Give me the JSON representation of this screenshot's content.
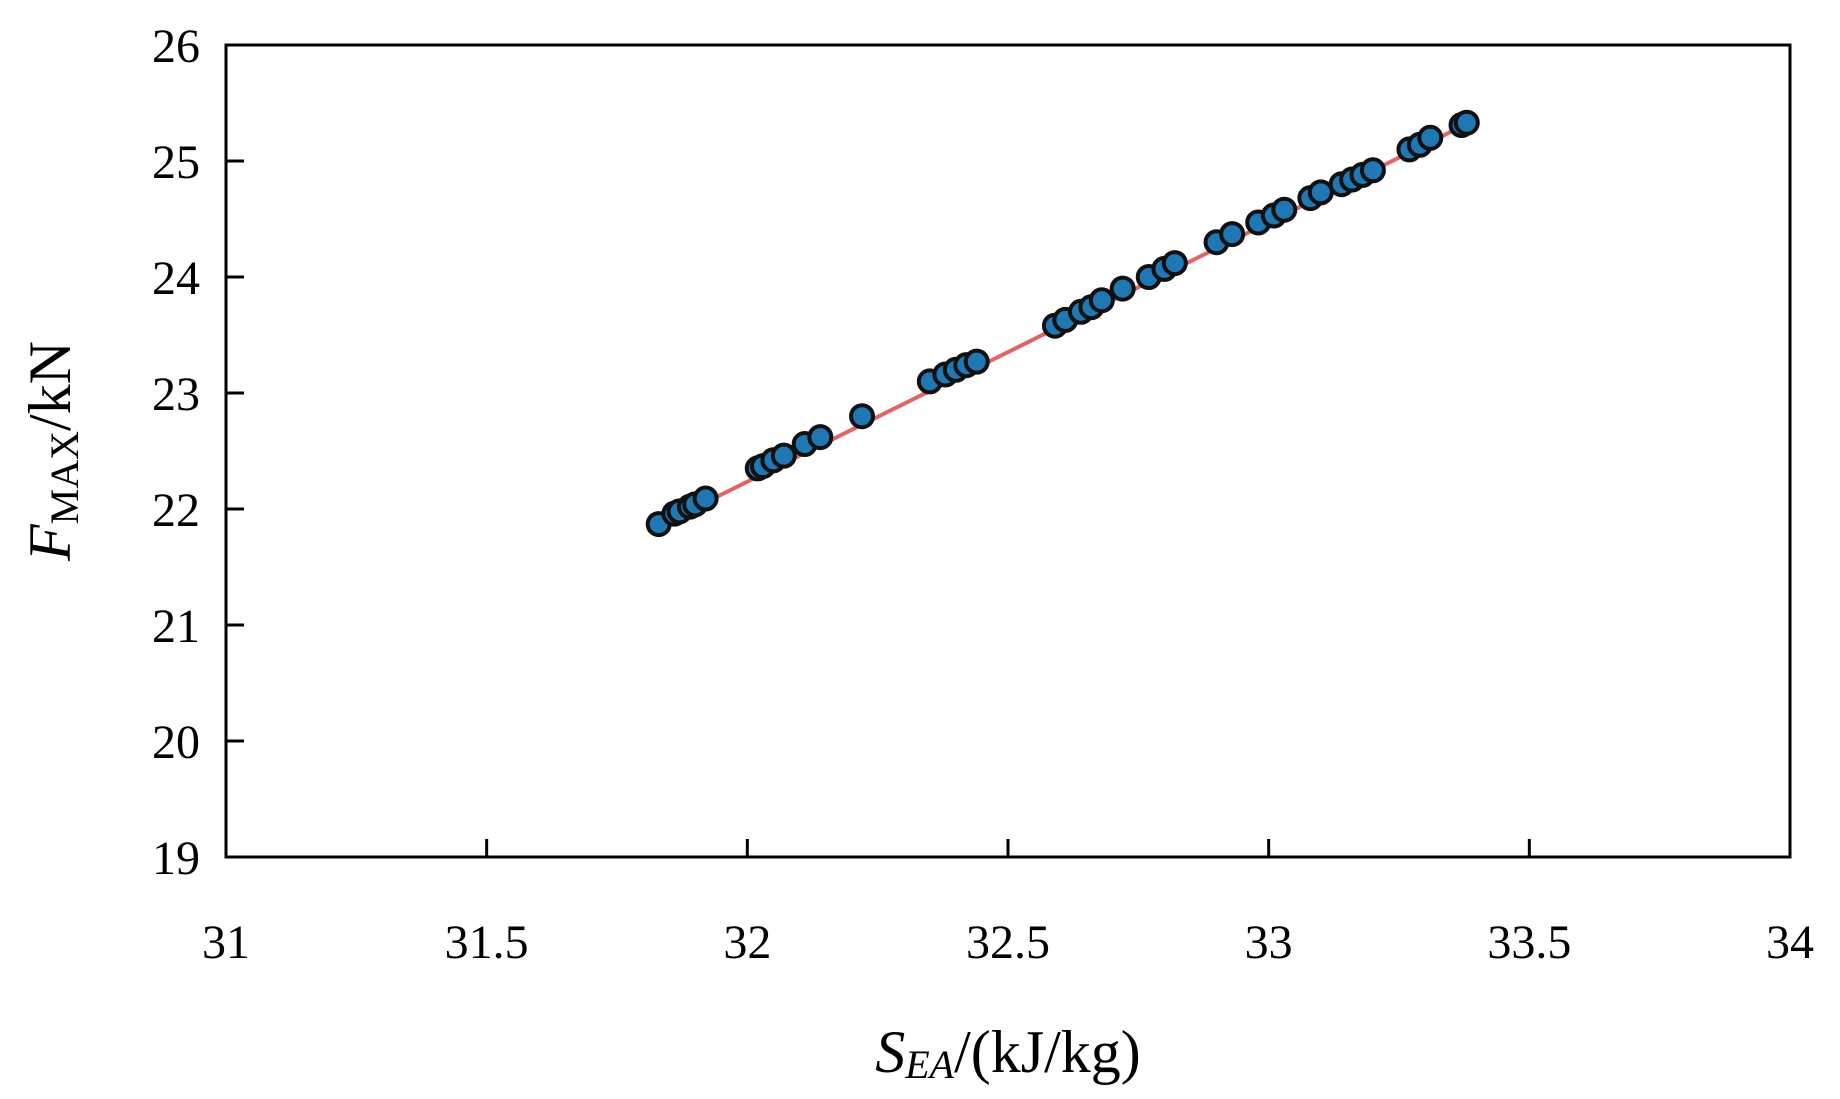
{
  "chart_data": {
    "type": "scatter",
    "xlim": [
      31,
      34
    ],
    "ylim": [
      19,
      26
    ],
    "xticks": [
      "31",
      "31.5",
      "32",
      "32.5",
      "33",
      "33.5",
      "34"
    ],
    "yticks": [
      "19",
      "20",
      "21",
      "22",
      "23",
      "24",
      "25",
      "26"
    ],
    "grid": false,
    "xlabel": {
      "main": "S",
      "sub": "EA",
      "rest": "/(kJ/kg)"
    },
    "ylabel": {
      "main": "F",
      "sub": "MAX",
      "rest": "/kN"
    },
    "series": [
      {
        "kind": "points",
        "color": "#1f77b4",
        "edge_color": "#111111",
        "points": [
          [
            31.83,
            21.87
          ],
          [
            31.86,
            21.96
          ],
          [
            31.87,
            21.98
          ],
          [
            31.89,
            22.02
          ],
          [
            31.9,
            22.04
          ],
          [
            31.92,
            22.09
          ],
          [
            32.02,
            22.35
          ],
          [
            32.03,
            22.37
          ],
          [
            32.05,
            22.42
          ],
          [
            32.07,
            22.46
          ],
          [
            32.11,
            22.56
          ],
          [
            32.14,
            22.62
          ],
          [
            32.22,
            22.8
          ],
          [
            32.35,
            23.1
          ],
          [
            32.38,
            23.16
          ],
          [
            32.4,
            23.2
          ],
          [
            32.42,
            23.24
          ],
          [
            32.44,
            23.27
          ],
          [
            32.59,
            23.58
          ],
          [
            32.61,
            23.63
          ],
          [
            32.64,
            23.7
          ],
          [
            32.66,
            23.74
          ],
          [
            32.68,
            23.8
          ],
          [
            32.72,
            23.9
          ],
          [
            32.77,
            24.0
          ],
          [
            32.8,
            24.07
          ],
          [
            32.82,
            24.12
          ],
          [
            32.9,
            24.3
          ],
          [
            32.93,
            24.37
          ],
          [
            32.98,
            24.47
          ],
          [
            33.01,
            24.53
          ],
          [
            33.03,
            24.58
          ],
          [
            33.08,
            24.68
          ],
          [
            33.1,
            24.73
          ],
          [
            33.14,
            24.8
          ],
          [
            33.16,
            24.84
          ],
          [
            33.18,
            24.88
          ],
          [
            33.2,
            24.92
          ],
          [
            33.27,
            25.1
          ],
          [
            33.29,
            25.14
          ],
          [
            33.31,
            25.2
          ],
          [
            33.37,
            25.31
          ],
          [
            33.38,
            25.33
          ]
        ]
      },
      {
        "kind": "fit_line",
        "color": "#e06666",
        "points": [
          [
            31.85,
            21.9
          ],
          [
            33.38,
            25.32
          ]
        ]
      }
    ]
  }
}
